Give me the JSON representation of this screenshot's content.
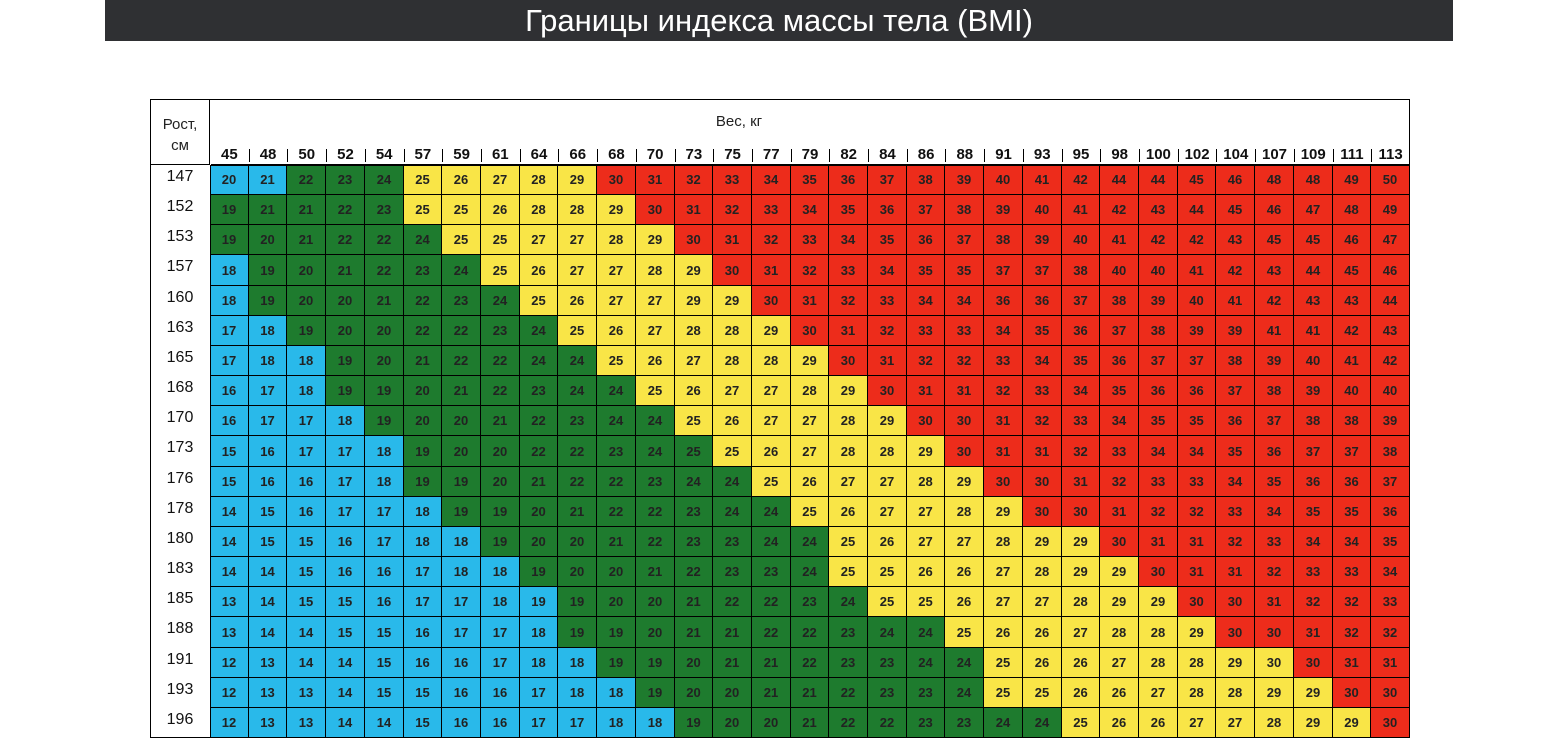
{
  "title": "Границы индекса массы тела (BMI)",
  "row_header": {
    "line1": "Рост,",
    "line2": "см"
  },
  "col_header": "Вес, кг",
  "colors": {
    "blue": "#29b9ea",
    "green": "#1e7b2e",
    "yellow": "#f9e547",
    "red": "#ed2c1b"
  },
  "chart_data": {
    "type": "table",
    "title": "Границы индекса массы тела (BMI)",
    "weights_kg": [
      45,
      48,
      50,
      52,
      54,
      57,
      59,
      61,
      64,
      66,
      68,
      70,
      73,
      75,
      77,
      79,
      82,
      84,
      86,
      88,
      91,
      93,
      95,
      98,
      100,
      102,
      104,
      107,
      109,
      111,
      113
    ],
    "heights_cm": [
      147,
      152,
      153,
      157,
      160,
      163,
      165,
      168,
      170,
      173,
      176,
      178,
      180,
      183,
      185,
      188,
      191,
      193,
      196
    ],
    "values": [
      [
        20,
        21,
        22,
        23,
        24,
        25,
        26,
        27,
        28,
        29,
        30,
        31,
        32,
        33,
        34,
        35,
        36,
        37,
        38,
        39,
        40,
        41,
        42,
        44,
        44,
        45,
        46,
        48,
        48,
        49,
        50
      ],
      [
        19,
        21,
        21,
        22,
        23,
        25,
        25,
        26,
        28,
        28,
        29,
        30,
        31,
        32,
        33,
        34,
        35,
        36,
        37,
        38,
        39,
        40,
        41,
        42,
        43,
        44,
        45,
        46,
        47,
        48,
        49
      ],
      [
        19,
        20,
        21,
        22,
        22,
        24,
        25,
        25,
        27,
        27,
        28,
        29,
        30,
        31,
        32,
        33,
        34,
        35,
        36,
        37,
        38,
        39,
        40,
        41,
        42,
        42,
        43,
        45,
        45,
        46,
        47
      ],
      [
        18,
        19,
        20,
        21,
        22,
        23,
        24,
        25,
        26,
        27,
        27,
        28,
        29,
        30,
        31,
        32,
        33,
        34,
        35,
        35,
        37,
        37,
        38,
        40,
        40,
        41,
        42,
        43,
        44,
        45,
        46
      ],
      [
        18,
        19,
        20,
        20,
        21,
        22,
        23,
        24,
        25,
        26,
        27,
        27,
        29,
        29,
        30,
        31,
        32,
        33,
        34,
        34,
        36,
        36,
        37,
        38,
        39,
        40,
        41,
        42,
        43,
        43,
        44
      ],
      [
        17,
        18,
        19,
        20,
        20,
        22,
        22,
        23,
        24,
        25,
        26,
        27,
        28,
        28,
        29,
        30,
        31,
        32,
        33,
        33,
        34,
        35,
        36,
        37,
        38,
        39,
        39,
        41,
        41,
        42,
        43
      ],
      [
        17,
        18,
        18,
        19,
        20,
        21,
        22,
        22,
        24,
        24,
        25,
        26,
        27,
        28,
        28,
        29,
        30,
        31,
        32,
        32,
        33,
        34,
        35,
        36,
        37,
        37,
        38,
        39,
        40,
        41,
        42
      ],
      [
        16,
        17,
        18,
        19,
        19,
        20,
        21,
        22,
        23,
        24,
        24,
        25,
        26,
        27,
        27,
        28,
        29,
        30,
        31,
        31,
        32,
        33,
        34,
        35,
        36,
        36,
        37,
        38,
        39,
        40,
        40
      ],
      [
        16,
        17,
        17,
        18,
        19,
        20,
        20,
        21,
        22,
        23,
        24,
        24,
        25,
        26,
        27,
        27,
        28,
        29,
        30,
        30,
        31,
        32,
        33,
        34,
        35,
        35,
        36,
        37,
        38,
        38,
        39
      ],
      [
        15,
        16,
        17,
        17,
        18,
        19,
        20,
        20,
        22,
        22,
        23,
        24,
        25,
        25,
        26,
        27,
        28,
        28,
        29,
        30,
        31,
        31,
        32,
        33,
        34,
        34,
        35,
        36,
        37,
        37,
        38
      ],
      [
        15,
        16,
        16,
        17,
        18,
        19,
        19,
        20,
        21,
        22,
        22,
        23,
        24,
        24,
        25,
        26,
        27,
        27,
        28,
        29,
        30,
        30,
        31,
        32,
        33,
        33,
        34,
        35,
        36,
        36,
        37
      ],
      [
        14,
        15,
        16,
        17,
        17,
        18,
        19,
        19,
        20,
        21,
        22,
        22,
        23,
        24,
        24,
        25,
        26,
        27,
        27,
        28,
        29,
        30,
        30,
        31,
        32,
        32,
        33,
        34,
        35,
        35,
        36
      ],
      [
        14,
        15,
        15,
        16,
        17,
        18,
        18,
        19,
        20,
        20,
        21,
        22,
        23,
        23,
        24,
        24,
        25,
        26,
        27,
        27,
        28,
        29,
        29,
        30,
        31,
        31,
        32,
        33,
        34,
        34,
        35
      ],
      [
        14,
        14,
        15,
        16,
        16,
        17,
        18,
        18,
        19,
        20,
        20,
        21,
        22,
        23,
        23,
        24,
        25,
        25,
        26,
        26,
        27,
        28,
        29,
        29,
        30,
        31,
        31,
        32,
        33,
        33,
        34
      ],
      [
        13,
        14,
        15,
        15,
        16,
        17,
        17,
        18,
        19,
        19,
        20,
        20,
        21,
        22,
        22,
        23,
        24,
        25,
        25,
        26,
        27,
        27,
        28,
        29,
        29,
        30,
        30,
        31,
        32,
        32,
        33
      ],
      [
        13,
        14,
        14,
        15,
        15,
        16,
        17,
        17,
        18,
        19,
        19,
        20,
        21,
        21,
        22,
        22,
        23,
        24,
        24,
        25,
        26,
        26,
        27,
        28,
        28,
        29,
        30,
        30,
        31,
        32,
        32
      ],
      [
        12,
        13,
        14,
        14,
        15,
        16,
        16,
        17,
        18,
        18,
        19,
        19,
        20,
        21,
        21,
        22,
        23,
        23,
        24,
        24,
        25,
        26,
        26,
        27,
        28,
        28,
        29,
        30,
        30,
        31,
        31
      ],
      [
        12,
        13,
        13,
        14,
        15,
        15,
        16,
        16,
        17,
        18,
        18,
        19,
        20,
        20,
        21,
        21,
        22,
        23,
        23,
        24,
        25,
        25,
        26,
        26,
        27,
        28,
        28,
        29,
        29,
        30,
        30
      ],
      [
        12,
        13,
        13,
        14,
        14,
        15,
        16,
        16,
        17,
        17,
        18,
        18,
        19,
        20,
        20,
        21,
        22,
        22,
        23,
        23,
        24,
        24,
        25,
        26,
        26,
        27,
        27,
        28,
        29,
        29,
        30
      ]
    ],
    "categories_by_color": [
      [
        "blue",
        "blue",
        "green",
        "green",
        "green",
        "yellow",
        "yellow",
        "yellow",
        "yellow",
        "yellow",
        "red",
        "red",
        "red",
        "red",
        "red",
        "red",
        "red",
        "red",
        "red",
        "red",
        "red",
        "red",
        "red",
        "red",
        "red",
        "red",
        "red",
        "red",
        "red",
        "red",
        "red"
      ],
      [
        "green",
        "green",
        "green",
        "green",
        "green",
        "yellow",
        "yellow",
        "yellow",
        "yellow",
        "yellow",
        "yellow",
        "red",
        "red",
        "red",
        "red",
        "red",
        "red",
        "red",
        "red",
        "red",
        "red",
        "red",
        "red",
        "red",
        "red",
        "red",
        "red",
        "red",
        "red",
        "red",
        "red"
      ],
      [
        "green",
        "green",
        "green",
        "green",
        "green",
        "green",
        "yellow",
        "yellow",
        "yellow",
        "yellow",
        "yellow",
        "yellow",
        "red",
        "red",
        "red",
        "red",
        "red",
        "red",
        "red",
        "red",
        "red",
        "red",
        "red",
        "red",
        "red",
        "red",
        "red",
        "red",
        "red",
        "red",
        "red"
      ],
      [
        "blue",
        "green",
        "green",
        "green",
        "green",
        "green",
        "green",
        "yellow",
        "yellow",
        "yellow",
        "yellow",
        "yellow",
        "yellow",
        "red",
        "red",
        "red",
        "red",
        "red",
        "red",
        "red",
        "red",
        "red",
        "red",
        "red",
        "red",
        "red",
        "red",
        "red",
        "red",
        "red",
        "red"
      ],
      [
        "blue",
        "green",
        "green",
        "green",
        "green",
        "green",
        "green",
        "green",
        "yellow",
        "yellow",
        "yellow",
        "yellow",
        "yellow",
        "yellow",
        "red",
        "red",
        "red",
        "red",
        "red",
        "red",
        "red",
        "red",
        "red",
        "red",
        "red",
        "red",
        "red",
        "red",
        "red",
        "red",
        "red"
      ],
      [
        "blue",
        "blue",
        "green",
        "green",
        "green",
        "green",
        "green",
        "green",
        "green",
        "yellow",
        "yellow",
        "yellow",
        "yellow",
        "yellow",
        "yellow",
        "red",
        "red",
        "red",
        "red",
        "red",
        "red",
        "red",
        "red",
        "red",
        "red",
        "red",
        "red",
        "red",
        "red",
        "red",
        "red"
      ],
      [
        "blue",
        "blue",
        "blue",
        "green",
        "green",
        "green",
        "green",
        "green",
        "green",
        "green",
        "yellow",
        "yellow",
        "yellow",
        "yellow",
        "yellow",
        "yellow",
        "red",
        "red",
        "red",
        "red",
        "red",
        "red",
        "red",
        "red",
        "red",
        "red",
        "red",
        "red",
        "red",
        "red",
        "red"
      ],
      [
        "blue",
        "blue",
        "blue",
        "green",
        "green",
        "green",
        "green",
        "green",
        "green",
        "green",
        "green",
        "yellow",
        "yellow",
        "yellow",
        "yellow",
        "yellow",
        "yellow",
        "red",
        "red",
        "red",
        "red",
        "red",
        "red",
        "red",
        "red",
        "red",
        "red",
        "red",
        "red",
        "red",
        "red"
      ],
      [
        "blue",
        "blue",
        "blue",
        "blue",
        "green",
        "green",
        "green",
        "green",
        "green",
        "green",
        "green",
        "green",
        "yellow",
        "yellow",
        "yellow",
        "yellow",
        "yellow",
        "yellow",
        "red",
        "red",
        "red",
        "red",
        "red",
        "red",
        "red",
        "red",
        "red",
        "red",
        "red",
        "red",
        "red"
      ],
      [
        "blue",
        "blue",
        "blue",
        "blue",
        "blue",
        "green",
        "green",
        "green",
        "green",
        "green",
        "green",
        "green",
        "green",
        "yellow",
        "yellow",
        "yellow",
        "yellow",
        "yellow",
        "yellow",
        "red",
        "red",
        "red",
        "red",
        "red",
        "red",
        "red",
        "red",
        "red",
        "red",
        "red",
        "red"
      ],
      [
        "blue",
        "blue",
        "blue",
        "blue",
        "blue",
        "green",
        "green",
        "green",
        "green",
        "green",
        "green",
        "green",
        "green",
        "green",
        "yellow",
        "yellow",
        "yellow",
        "yellow",
        "yellow",
        "yellow",
        "red",
        "red",
        "red",
        "red",
        "red",
        "red",
        "red",
        "red",
        "red",
        "red",
        "red"
      ],
      [
        "blue",
        "blue",
        "blue",
        "blue",
        "blue",
        "blue",
        "green",
        "green",
        "green",
        "green",
        "green",
        "green",
        "green",
        "green",
        "green",
        "yellow",
        "yellow",
        "yellow",
        "yellow",
        "yellow",
        "yellow",
        "red",
        "red",
        "red",
        "red",
        "red",
        "red",
        "red",
        "red",
        "red",
        "red"
      ],
      [
        "blue",
        "blue",
        "blue",
        "blue",
        "blue",
        "blue",
        "blue",
        "green",
        "green",
        "green",
        "green",
        "green",
        "green",
        "green",
        "green",
        "green",
        "yellow",
        "yellow",
        "yellow",
        "yellow",
        "yellow",
        "yellow",
        "yellow",
        "red",
        "red",
        "red",
        "red",
        "red",
        "red",
        "red",
        "red"
      ],
      [
        "blue",
        "blue",
        "blue",
        "blue",
        "blue",
        "blue",
        "blue",
        "blue",
        "green",
        "green",
        "green",
        "green",
        "green",
        "green",
        "green",
        "green",
        "yellow",
        "yellow",
        "yellow",
        "yellow",
        "yellow",
        "yellow",
        "yellow",
        "yellow",
        "red",
        "red",
        "red",
        "red",
        "red",
        "red",
        "red"
      ],
      [
        "blue",
        "blue",
        "blue",
        "blue",
        "blue",
        "blue",
        "blue",
        "blue",
        "blue",
        "green",
        "green",
        "green",
        "green",
        "green",
        "green",
        "green",
        "green",
        "yellow",
        "yellow",
        "yellow",
        "yellow",
        "yellow",
        "yellow",
        "yellow",
        "yellow",
        "red",
        "red",
        "red",
        "red",
        "red",
        "red"
      ],
      [
        "blue",
        "blue",
        "blue",
        "blue",
        "blue",
        "blue",
        "blue",
        "blue",
        "blue",
        "green",
        "green",
        "green",
        "green",
        "green",
        "green",
        "green",
        "green",
        "green",
        "green",
        "yellow",
        "yellow",
        "yellow",
        "yellow",
        "yellow",
        "yellow",
        "yellow",
        "red",
        "red",
        "red",
        "red",
        "red"
      ],
      [
        "blue",
        "blue",
        "blue",
        "blue",
        "blue",
        "blue",
        "blue",
        "blue",
        "blue",
        "blue",
        "green",
        "green",
        "green",
        "green",
        "green",
        "green",
        "green",
        "green",
        "green",
        "green",
        "yellow",
        "yellow",
        "yellow",
        "yellow",
        "yellow",
        "yellow",
        "yellow",
        "yellow",
        "red",
        "red",
        "red"
      ],
      [
        "blue",
        "blue",
        "blue",
        "blue",
        "blue",
        "blue",
        "blue",
        "blue",
        "blue",
        "blue",
        "blue",
        "green",
        "green",
        "green",
        "green",
        "green",
        "green",
        "green",
        "green",
        "green",
        "yellow",
        "yellow",
        "yellow",
        "yellow",
        "yellow",
        "yellow",
        "yellow",
        "yellow",
        "yellow",
        "red",
        "red"
      ],
      [
        "blue",
        "blue",
        "blue",
        "blue",
        "blue",
        "blue",
        "blue",
        "blue",
        "blue",
        "blue",
        "blue",
        "blue",
        "green",
        "green",
        "green",
        "green",
        "green",
        "green",
        "green",
        "green",
        "green",
        "green",
        "yellow",
        "yellow",
        "yellow",
        "yellow",
        "yellow",
        "yellow",
        "yellow",
        "yellow",
        "red"
      ]
    ]
  }
}
